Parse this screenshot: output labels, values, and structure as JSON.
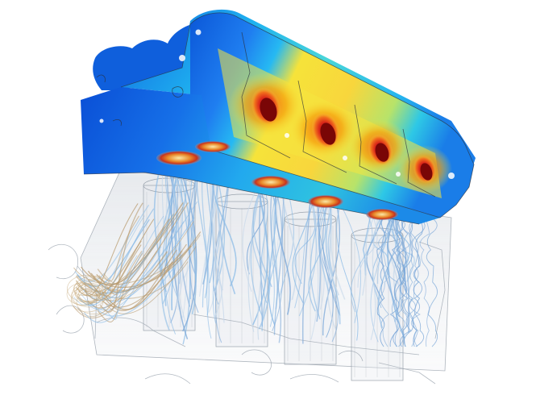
{
  "image": {
    "subject": "cfd-engine-cylinder-head-thermal-simulation",
    "background_color": "#ffffff",
    "colormap": [
      "#0a4fd6",
      "#1e8bff",
      "#22d3ee",
      "#7ee8a8",
      "#f4ef3a",
      "#f59e0b",
      "#ef4a1d",
      "#b10d0d"
    ],
    "block_tint": "#9aa3ad",
    "streamline_colors": [
      "#8fbde6",
      "#c8d9ea",
      "#b89a6e",
      "#7aa7d8"
    ]
  }
}
